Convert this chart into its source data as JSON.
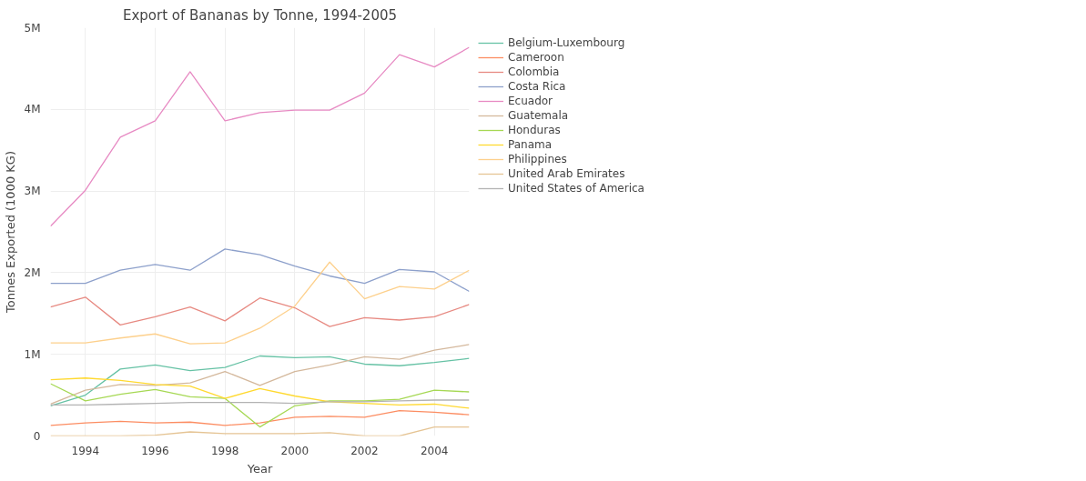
{
  "chart_data": {
    "type": "line",
    "title": "Export of Bananas by Tonne, 1994-2005",
    "xlabel": "Year",
    "ylabel": "Tonnes Exported (1000 KG)",
    "x": [
      1993,
      1994,
      1995,
      1996,
      1997,
      1998,
      1999,
      2000,
      2001,
      2002,
      2003,
      2004,
      2005
    ],
    "xlim": [
      1993,
      2005
    ],
    "xticks": [
      1994,
      1996,
      1998,
      2000,
      2002,
      2004
    ],
    "ylim": [
      0,
      5000000
    ],
    "yticks": [
      0,
      {
        "value": 1000000,
        "label": "1M"
      },
      {
        "value": 2000000,
        "label": "2M"
      },
      {
        "value": 3000000,
        "label": "3M"
      },
      {
        "value": 4000000,
        "label": "4M"
      },
      {
        "value": 5000000,
        "label": "5M"
      }
    ],
    "grid": true,
    "legend": "top right",
    "line_style": "solid",
    "marker": "none",
    "series": [
      {
        "name": "Belgium-Luxembourg",
        "color": "#66c2a5",
        "values": [
          370000,
          500000,
          820000,
          870000,
          800000,
          840000,
          980000,
          960000,
          970000,
          880000,
          860000,
          900000,
          950000
        ]
      },
      {
        "name": "Cameroon",
        "color": "#fc8d62",
        "values": [
          130000,
          160000,
          180000,
          160000,
          170000,
          130000,
          160000,
          230000,
          240000,
          230000,
          310000,
          290000,
          260000
        ]
      },
      {
        "name": "Colombia",
        "color": "#e78a82",
        "values": [
          1580000,
          1700000,
          1360000,
          1460000,
          1580000,
          1410000,
          1690000,
          1570000,
          1340000,
          1450000,
          1420000,
          1460000,
          1610000
        ]
      },
      {
        "name": "Costa Rica",
        "color": "#8da0cb",
        "values": [
          1870000,
          1870000,
          2030000,
          2100000,
          2030000,
          2290000,
          2220000,
          2080000,
          1960000,
          1870000,
          2040000,
          2010000,
          1770000
        ]
      },
      {
        "name": "Ecuador",
        "color": "#e78ac3",
        "values": [
          2570000,
          3010000,
          3660000,
          3860000,
          4460000,
          3860000,
          3960000,
          3990000,
          3990000,
          4200000,
          4670000,
          4520000,
          4760000
        ]
      },
      {
        "name": "Guatemala",
        "color": "#d4b89c",
        "values": [
          390000,
          560000,
          630000,
          620000,
          650000,
          790000,
          620000,
          790000,
          870000,
          970000,
          940000,
          1050000,
          1120000
        ]
      },
      {
        "name": "Honduras",
        "color": "#a6d854",
        "values": [
          640000,
          430000,
          510000,
          570000,
          480000,
          460000,
          110000,
          370000,
          430000,
          430000,
          450000,
          560000,
          540000
        ]
      },
      {
        "name": "Panama",
        "color": "#ffd92f",
        "values": [
          690000,
          710000,
          680000,
          630000,
          610000,
          460000,
          580000,
          490000,
          420000,
          400000,
          380000,
          390000,
          340000
        ]
      },
      {
        "name": "Philippines",
        "color": "#fdd08c",
        "values": [
          1140000,
          1140000,
          1200000,
          1250000,
          1130000,
          1140000,
          1320000,
          1590000,
          2130000,
          1680000,
          1830000,
          1800000,
          2030000
        ]
      },
      {
        "name": "United Arab Emirates",
        "color": "#e5c494",
        "values": [
          0,
          0,
          0,
          10000,
          50000,
          30000,
          30000,
          30000,
          40000,
          0,
          0,
          110000,
          110000
        ]
      },
      {
        "name": "United States of America",
        "color": "#b3b3b3",
        "values": [
          380000,
          380000,
          390000,
          400000,
          410000,
          410000,
          410000,
          400000,
          420000,
          420000,
          430000,
          440000,
          440000
        ]
      }
    ]
  }
}
